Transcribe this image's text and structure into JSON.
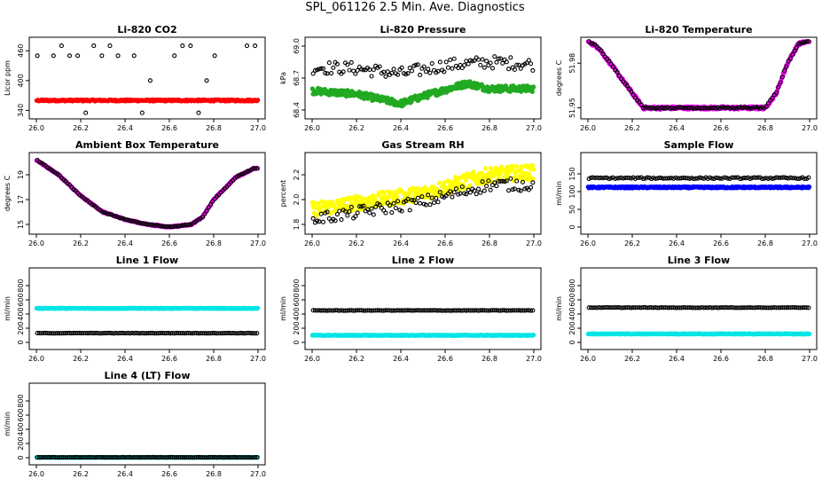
{
  "title": "SPL_061126  2.5 Min. Ave. Diagnostics",
  "chart_data": [
    {
      "type": "scatter",
      "title": "Li-820 CO2",
      "ylabel": "Licor ppm",
      "xlim": [
        26.0,
        27.0
      ],
      "ylim": [
        330,
        480
      ],
      "xticks": [
        "26.0",
        "26.2",
        "26.4",
        "26.6",
        "26.8",
        "27.0"
      ],
      "yticks": [
        {
          "v": 340,
          "label": "340"
        },
        {
          "v": 400,
          "label": "400"
        },
        {
          "v": 460,
          "label": "460"
        }
      ],
      "series": [
        {
          "name": "black",
          "color": "#000000",
          "style": "discrete",
          "levels": [
            335,
            360,
            400,
            450,
            470
          ],
          "jitter": 0
        },
        {
          "name": "red",
          "color": "#ff0000",
          "style": "line",
          "points": [
            [
              26.0,
              360
            ],
            [
              27.0,
              360
            ]
          ],
          "jitter": 1.5,
          "dense": true
        }
      ]
    },
    {
      "type": "scatter",
      "title": "Li-820 Pressure",
      "ylabel": "kPa",
      "xlim": [
        26.0,
        27.0
      ],
      "ylim": [
        68.35,
        69.05
      ],
      "xticks": [
        "26.0",
        "26.2",
        "26.4",
        "26.6",
        "26.8",
        "27.0"
      ],
      "yticks": [
        {
          "v": 68.4,
          "label": "68.4"
        },
        {
          "v": 68.7,
          "label": "68.7"
        },
        {
          "v": 69.0,
          "label": "69.0"
        }
      ],
      "series": [
        {
          "name": "black",
          "color": "#000000",
          "style": "line",
          "points": [
            [
              26.0,
              68.8
            ],
            [
              26.2,
              68.79
            ],
            [
              26.4,
              68.74
            ],
            [
              26.6,
              68.82
            ],
            [
              26.8,
              68.85
            ],
            [
              27.0,
              68.83
            ]
          ],
          "jitter": 0.06,
          "dense": false
        },
        {
          "name": "green",
          "color": "#22aa22",
          "style": "line",
          "points": [
            [
              26.0,
              68.58
            ],
            [
              26.2,
              68.55
            ],
            [
              26.4,
              68.46
            ],
            [
              26.5,
              68.53
            ],
            [
              26.7,
              68.65
            ],
            [
              26.8,
              68.6
            ],
            [
              27.0,
              68.6
            ]
          ],
          "jitter": 0.03,
          "dense": true
        }
      ]
    },
    {
      "type": "scatter",
      "title": "Li-820 Temperature",
      "ylabel": "degrees C",
      "xlim": [
        26.0,
        27.0
      ],
      "ylim": [
        51.945,
        51.995
      ],
      "xticks": [
        "26.0",
        "26.2",
        "26.4",
        "26.6",
        "26.8",
        "27.0"
      ],
      "yticks": [
        {
          "v": 51.95,
          "label": "51.95"
        },
        {
          "v": 51.98,
          "label": "51.98"
        }
      ],
      "series": [
        {
          "name": "magenta",
          "color": "#ff00ff",
          "style": "line",
          "points": [
            [
              26.0,
              51.995
            ],
            [
              26.05,
              51.99
            ],
            [
              26.1,
              51.98
            ],
            [
              26.2,
              51.96
            ],
            [
              26.25,
              51.95
            ],
            [
              26.8,
              51.95
            ],
            [
              26.85,
              51.96
            ],
            [
              26.9,
              51.98
            ],
            [
              26.95,
              51.993
            ],
            [
              27.0,
              51.995
            ]
          ],
          "jitter": 0.001,
          "dense": true
        },
        {
          "name": "black",
          "color": "#000000",
          "style": "line",
          "points": [
            [
              26.0,
              51.995
            ],
            [
              26.05,
              51.99
            ],
            [
              26.1,
              51.98
            ],
            [
              26.2,
              51.96
            ],
            [
              26.25,
              51.95
            ],
            [
              26.8,
              51.95
            ],
            [
              26.85,
              51.96
            ],
            [
              26.9,
              51.98
            ],
            [
              26.95,
              51.993
            ],
            [
              27.0,
              51.995
            ]
          ],
          "jitter": 0.0005,
          "dense": false
        }
      ]
    },
    {
      "type": "scatter",
      "title": "Ambient Box Temperature",
      "ylabel": "degrees C",
      "xlim": [
        26.0,
        27.0
      ],
      "ylim": [
        14.5,
        20.5
      ],
      "xticks": [
        "26.0",
        "26.2",
        "26.4",
        "26.6",
        "26.8",
        "27.0"
      ],
      "yticks": [
        {
          "v": 15,
          "label": "15"
        },
        {
          "v": 17,
          "label": "17"
        },
        {
          "v": 19,
          "label": "19"
        }
      ],
      "series": [
        {
          "name": "magenta",
          "color": "#ff00ff",
          "style": "line",
          "points": [
            [
              26.0,
              20.2
            ],
            [
              26.1,
              19.0
            ],
            [
              26.2,
              17.3
            ],
            [
              26.3,
              16.0
            ],
            [
              26.4,
              15.4
            ],
            [
              26.5,
              15.0
            ],
            [
              26.6,
              14.8
            ],
            [
              26.7,
              15.0
            ],
            [
              26.75,
              15.6
            ],
            [
              26.8,
              17.0
            ],
            [
              26.9,
              18.8
            ],
            [
              26.98,
              19.5
            ]
          ],
          "jitter": 0.05,
          "dense": true
        },
        {
          "name": "black",
          "color": "#000000",
          "style": "line",
          "points": [
            [
              26.0,
              20.2
            ],
            [
              26.1,
              19.0
            ],
            [
              26.2,
              17.3
            ],
            [
              26.3,
              16.0
            ],
            [
              26.4,
              15.4
            ],
            [
              26.5,
              15.0
            ],
            [
              26.6,
              14.8
            ],
            [
              26.7,
              15.0
            ],
            [
              26.75,
              15.6
            ],
            [
              26.8,
              17.0
            ],
            [
              26.9,
              18.8
            ],
            [
              26.98,
              19.5
            ]
          ],
          "jitter": 0.03,
          "dense": false
        }
      ]
    },
    {
      "type": "scatter",
      "title": "Gas Stream RH",
      "ylabel": "percent",
      "xlim": [
        26.0,
        27.0
      ],
      "ylim": [
        1.75,
        2.35
      ],
      "xticks": [
        "26.0",
        "26.2",
        "26.4",
        "26.6",
        "26.8",
        "27.0"
      ],
      "yticks": [
        {
          "v": 1.8,
          "label": "1.8"
        },
        {
          "v": 2.0,
          "label": "2.0"
        },
        {
          "v": 2.2,
          "label": "2.2"
        }
      ],
      "series": [
        {
          "name": "yellow",
          "color": "#ffff00",
          "style": "line",
          "points": [
            [
              26.0,
              1.92
            ],
            [
              26.5,
              2.05
            ],
            [
              26.8,
              2.2
            ],
            [
              27.0,
              2.22
            ]
          ],
          "jitter": 0.06,
          "dense": true
        },
        {
          "name": "black",
          "color": "#000000",
          "style": "line",
          "points": [
            [
              26.0,
              1.84
            ],
            [
              26.5,
              1.98
            ],
            [
              26.8,
              2.12
            ],
            [
              27.0,
              2.12
            ]
          ],
          "jitter": 0.05,
          "dense": false
        }
      ]
    },
    {
      "type": "scatter",
      "title": "Sample Flow",
      "ylabel": "ml/min",
      "xlim": [
        26.0,
        27.0
      ],
      "ylim": [
        -10,
        200
      ],
      "xticks": [
        "26.0",
        "26.2",
        "26.4",
        "26.6",
        "26.8",
        "27.0"
      ],
      "yticks": [
        {
          "v": 0,
          "label": "0"
        },
        {
          "v": 50,
          "label": "50"
        },
        {
          "v": 100,
          "label": "100"
        },
        {
          "v": 150,
          "label": "150"
        }
      ],
      "series": [
        {
          "name": "blue",
          "color": "#0000ff",
          "style": "line",
          "points": [
            [
              26.0,
              112
            ],
            [
              27.0,
              112
            ]
          ],
          "jitter": 2,
          "dense": true
        },
        {
          "name": "black",
          "color": "#000000",
          "style": "line",
          "points": [
            [
              26.0,
              138
            ],
            [
              27.0,
              138
            ]
          ],
          "jitter": 2,
          "dense": false
        }
      ]
    },
    {
      "type": "scatter",
      "title": "Line 1 Flow",
      "ylabel": "ml/min",
      "xlim": [
        26.0,
        27.0
      ],
      "ylim": [
        -50,
        1000
      ],
      "xticks": [
        "26.0",
        "26.2",
        "26.4",
        "26.6",
        "26.8",
        "27.0"
      ],
      "yticks": [
        {
          "v": 0,
          "label": "0"
        },
        {
          "v": 200,
          "label": "200"
        },
        {
          "v": 400,
          "label": "400"
        },
        {
          "v": 600,
          "label": "600"
        },
        {
          "v": 800,
          "label": "800"
        }
      ],
      "series": [
        {
          "name": "cyan",
          "color": "#00e5e5",
          "style": "line",
          "points": [
            [
              26.0,
              480
            ],
            [
              27.0,
              480
            ]
          ],
          "jitter": 4,
          "dense": true
        },
        {
          "name": "black",
          "color": "#000000",
          "style": "line",
          "points": [
            [
              26.0,
              130
            ],
            [
              27.0,
              130
            ]
          ],
          "jitter": 3,
          "dense": false
        }
      ]
    },
    {
      "type": "scatter",
      "title": "Line 2 Flow",
      "ylabel": "ml/min",
      "xlim": [
        26.0,
        27.0
      ],
      "ylim": [
        -50,
        1000
      ],
      "xticks": [
        "26.0",
        "26.2",
        "26.4",
        "26.6",
        "26.8",
        "27.0"
      ],
      "yticks": [
        {
          "v": 0,
          "label": "0"
        },
        {
          "v": 200,
          "label": "200"
        },
        {
          "v": 400,
          "label": "400"
        },
        {
          "v": 600,
          "label": "600"
        },
        {
          "v": 800,
          "label": "800"
        }
      ],
      "series": [
        {
          "name": "cyan",
          "color": "#00e5e5",
          "style": "line",
          "points": [
            [
              26.0,
              100
            ],
            [
              27.0,
              100
            ]
          ],
          "jitter": 4,
          "dense": true
        },
        {
          "name": "black",
          "color": "#000000",
          "style": "line",
          "points": [
            [
              26.0,
              450
            ],
            [
              27.0,
              450
            ]
          ],
          "jitter": 3,
          "dense": false
        }
      ]
    },
    {
      "type": "scatter",
      "title": "Line 3 Flow",
      "ylabel": "ml/min",
      "xlim": [
        26.0,
        27.0
      ],
      "ylim": [
        -50,
        1000
      ],
      "xticks": [
        "26.0",
        "26.2",
        "26.4",
        "26.6",
        "26.8",
        "27.0"
      ],
      "yticks": [
        {
          "v": 0,
          "label": "0"
        },
        {
          "v": 200,
          "label": "200"
        },
        {
          "v": 400,
          "label": "400"
        },
        {
          "v": 600,
          "label": "600"
        },
        {
          "v": 800,
          "label": "800"
        }
      ],
      "series": [
        {
          "name": "cyan",
          "color": "#00e5e5",
          "style": "line",
          "points": [
            [
              26.0,
              120
            ],
            [
              27.0,
              120
            ]
          ],
          "jitter": 4,
          "dense": true
        },
        {
          "name": "black",
          "color": "#000000",
          "style": "line",
          "points": [
            [
              26.0,
              490
            ],
            [
              27.0,
              490
            ]
          ],
          "jitter": 3,
          "dense": false
        }
      ]
    },
    {
      "type": "scatter",
      "title": "Line 4 (LT) Flow",
      "ylabel": "ml/min",
      "xlim": [
        26.0,
        27.0
      ],
      "ylim": [
        -50,
        1000
      ],
      "xticks": [
        "26.0",
        "26.2",
        "26.4",
        "26.6",
        "26.8",
        "27.0"
      ],
      "yticks": [
        {
          "v": 0,
          "label": "0"
        },
        {
          "v": 200,
          "label": "200"
        },
        {
          "v": 400,
          "label": "400"
        },
        {
          "v": 600,
          "label": "600"
        },
        {
          "v": 800,
          "label": "800"
        }
      ],
      "series": [
        {
          "name": "cyan",
          "color": "#00e5e5",
          "style": "line",
          "points": [
            [
              26.0,
              5
            ],
            [
              27.0,
              5
            ]
          ],
          "jitter": 2,
          "dense": true
        },
        {
          "name": "black",
          "color": "#000000",
          "style": "line",
          "points": [
            [
              26.0,
              5
            ],
            [
              27.0,
              5
            ]
          ],
          "jitter": 2,
          "dense": false
        }
      ]
    }
  ]
}
